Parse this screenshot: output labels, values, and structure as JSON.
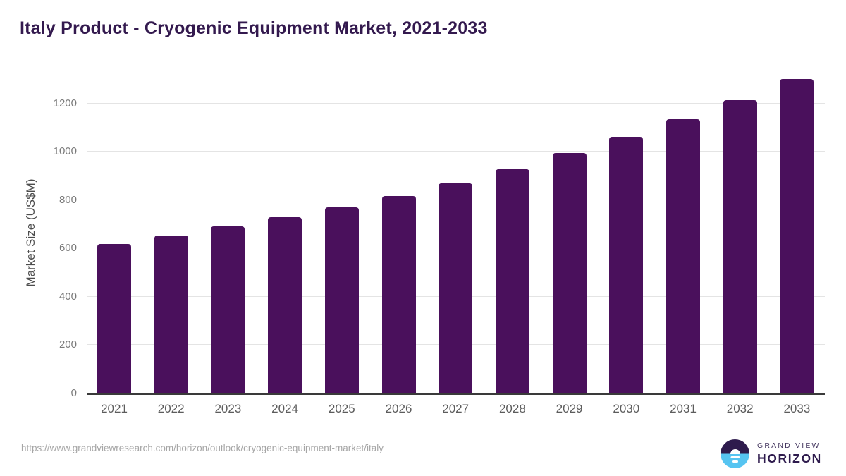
{
  "page": {
    "title": "Italy Product - Cryogenic Equipment Market, 2021-2033"
  },
  "chart_data": {
    "type": "bar",
    "title": "Italy Product - Cryogenic Equipment Market, 2021-2033",
    "categories": [
      "2021",
      "2022",
      "2023",
      "2024",
      "2025",
      "2026",
      "2027",
      "2028",
      "2029",
      "2030",
      "2031",
      "2032",
      "2033"
    ],
    "values": [
      617,
      652,
      690,
      729,
      771,
      817,
      868,
      926,
      995,
      1062,
      1134,
      1213,
      1300
    ],
    "xlabel": "",
    "ylabel": "Market Size (US$M)",
    "ylim": [
      0,
      1356
    ],
    "yticks": [
      0,
      200,
      400,
      600,
      800,
      1000,
      1200
    ],
    "grid": true,
    "legend": "none",
    "bar_color": "#4a105c"
  },
  "footer": {
    "source_url": "https://www.grandviewresearch.com/horizon/outlook/cryogenic-equipment-market/italy",
    "logo": {
      "icon": "horizon-sunrise-icon",
      "line1": "GRAND VIEW",
      "line2": "HORIZON"
    }
  },
  "colors": {
    "bar": "#4a105c",
    "title_text": "#33194e",
    "gridline": "#e4e4e4",
    "axis_line": "#3a3a3a",
    "y_tick_text": "#7a7a7a",
    "x_tick_text": "#5c5c5c",
    "axis_label_text": "#4d4d4d",
    "source_url_text": "#a6a6a6",
    "logo_purple": "#2e1b4d",
    "logo_blue": "#56c4f1"
  }
}
